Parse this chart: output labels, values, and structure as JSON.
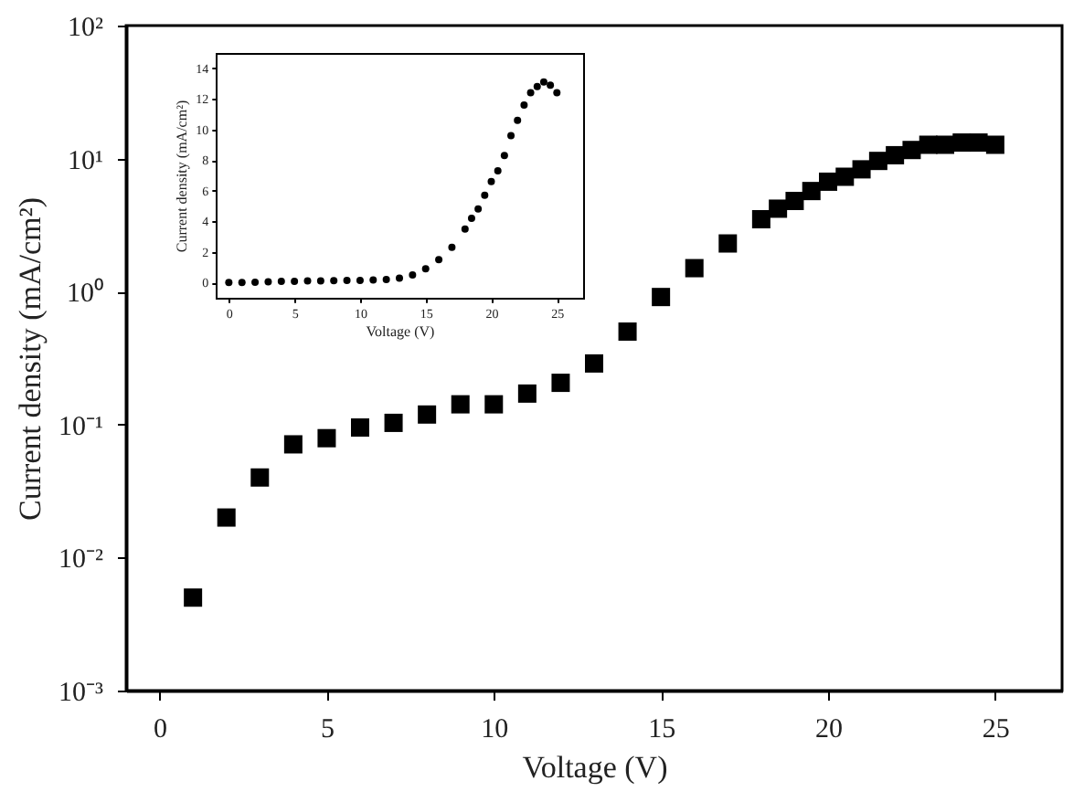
{
  "chart_data": [
    {
      "type": "scatter",
      "xlabel": "Voltage (V)",
      "ylabel": "Current density (mA/cm²)",
      "log": "y",
      "marker": "square",
      "xlim": [
        -1,
        27
      ],
      "xticks": [
        0,
        5,
        10,
        15,
        20,
        25
      ],
      "ylim": [
        0.001,
        100
      ],
      "yticks": [
        {
          "value": 0.001,
          "label": "10⁻³"
        },
        {
          "value": 0.01,
          "label": "10⁻²"
        },
        {
          "value": 0.1,
          "label": "10⁻¹"
        },
        {
          "value": 1,
          "label": "10⁰"
        },
        {
          "value": 10,
          "label": "10¹"
        },
        {
          "value": 100,
          "label": "10²"
        }
      ],
      "x": [
        1,
        2,
        3,
        4,
        5,
        6,
        7,
        8,
        9,
        10,
        11,
        12,
        13,
        14,
        15,
        16,
        17,
        18,
        18.5,
        19,
        19.5,
        20,
        20.5,
        21,
        21.5,
        22,
        22.5,
        23,
        23.5,
        24,
        24.5,
        25
      ],
      "series": [
        {
          "color": "#000000",
          "values": [
            0.005,
            0.02,
            0.04,
            0.071,
            0.079,
            0.095,
            0.103,
            0.119,
            0.142,
            0.142,
            0.171,
            0.206,
            0.288,
            0.5,
            0.91,
            1.5,
            2.3,
            3.5,
            4.2,
            4.8,
            5.7,
            6.7,
            7.3,
            8.3,
            9.6,
            10.6,
            11.6,
            12.7,
            12.7,
            13.2,
            13.2,
            12.7
          ]
        }
      ]
    },
    {
      "type": "scatter",
      "xlabel": "Voltage (V)",
      "ylabel": "Current density (mA/cm²)",
      "marker": "circle",
      "xlim": [
        -1,
        27
      ],
      "xticks": [
        0,
        5,
        10,
        15,
        20,
        25
      ],
      "ylim": [
        -1,
        15
      ],
      "yticks": [
        0,
        2,
        4,
        6,
        8,
        10,
        12,
        14
      ],
      "x": [
        0,
        1,
        2,
        3,
        4,
        5,
        6,
        7,
        8,
        9,
        10,
        11,
        12,
        13,
        14,
        15,
        16,
        17,
        18,
        18.5,
        19,
        19.5,
        20,
        20.5,
        21,
        21.5,
        22,
        22.5,
        23,
        23.5,
        24,
        24.5,
        25
      ],
      "series": [
        {
          "color": "#000000",
          "values": [
            0,
            0,
            0.02,
            0.04,
            0.07,
            0.08,
            0.1,
            0.1,
            0.12,
            0.14,
            0.14,
            0.17,
            0.2,
            0.29,
            0.5,
            0.9,
            1.5,
            2.3,
            3.5,
            4.2,
            4.8,
            5.7,
            6.6,
            7.3,
            8.3,
            9.6,
            10.6,
            11.6,
            12.4,
            12.8,
            13.1,
            12.9,
            12.4
          ]
        }
      ]
    }
  ]
}
